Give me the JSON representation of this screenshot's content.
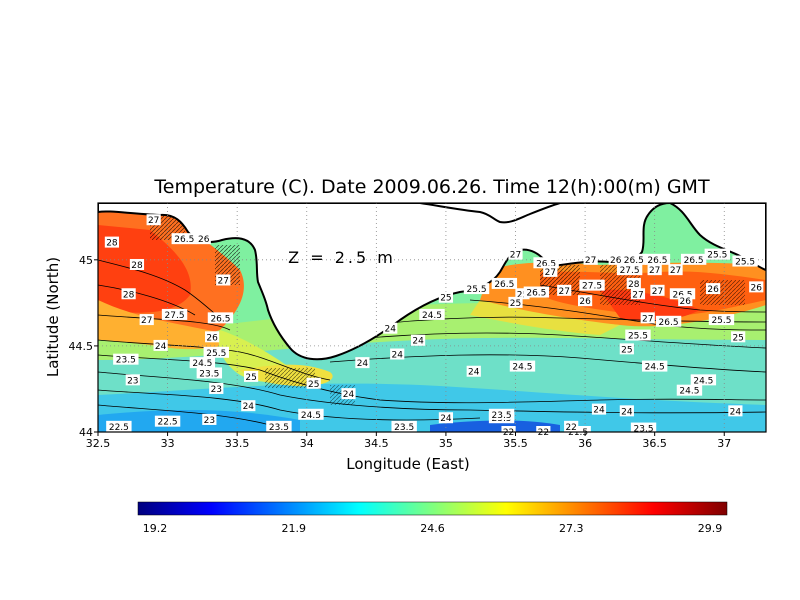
{
  "title": "Temperature (C). Date 2009.06.26. Time 12(h):00(m) GMT",
  "depth_label": "Z = 2.5 m",
  "x_axis": {
    "label": "Longitude (East)",
    "ticks": [
      "32.5",
      "33",
      "33.5",
      "34",
      "34.5",
      "35",
      "35.5",
      "36",
      "36.5",
      "37"
    ],
    "range": [
      32.5,
      37.3
    ]
  },
  "y_axis": {
    "label": "Latitude (North)",
    "ticks": [
      "44",
      "44.5",
      "45"
    ],
    "range": [
      44.0,
      45.33
    ]
  },
  "colorbar": {
    "labels": [
      "19.2",
      "21.9",
      "24.6",
      "27.3",
      "29.9"
    ],
    "colors": [
      "#00007f",
      "#0000ff",
      "#007fff",
      "#00ffff",
      "#7fff7f",
      "#ffff00",
      "#ff7f00",
      "#ff0000",
      "#7f0000"
    ]
  },
  "land_color": "#ffffff",
  "coast_color": "#000000",
  "contour_labels": [
    {
      "text": "28",
      "lon": 32.6,
      "lat": 45.1
    },
    {
      "text": "27",
      "lon": 32.9,
      "lat": 45.23
    },
    {
      "text": "26.5",
      "lon": 33.12,
      "lat": 45.12
    },
    {
      "text": "26",
      "lon": 33.26,
      "lat": 45.12
    },
    {
      "text": "28",
      "lon": 32.78,
      "lat": 44.97
    },
    {
      "text": "28",
      "lon": 32.72,
      "lat": 44.8
    },
    {
      "text": "27",
      "lon": 33.4,
      "lat": 44.88
    },
    {
      "text": "27.5",
      "lon": 33.05,
      "lat": 44.68
    },
    {
      "text": "26.5",
      "lon": 33.38,
      "lat": 44.66
    },
    {
      "text": "27",
      "lon": 32.85,
      "lat": 44.65
    },
    {
      "text": "26",
      "lon": 33.32,
      "lat": 44.55
    },
    {
      "text": "24",
      "lon": 32.95,
      "lat": 44.5
    },
    {
      "text": "25.5",
      "lon": 33.35,
      "lat": 44.46
    },
    {
      "text": "23.5",
      "lon": 32.7,
      "lat": 44.42
    },
    {
      "text": "24.5",
      "lon": 33.25,
      "lat": 44.4
    },
    {
      "text": "23.5",
      "lon": 33.3,
      "lat": 44.34
    },
    {
      "text": "25",
      "lon": 33.6,
      "lat": 44.32
    },
    {
      "text": "23",
      "lon": 32.75,
      "lat": 44.3
    },
    {
      "text": "23",
      "lon": 33.35,
      "lat": 44.25
    },
    {
      "text": "25",
      "lon": 34.05,
      "lat": 44.28
    },
    {
      "text": "24",
      "lon": 33.58,
      "lat": 44.15
    },
    {
      "text": "24.5",
      "lon": 34.03,
      "lat": 44.1
    },
    {
      "text": "22.5",
      "lon": 32.65,
      "lat": 44.03
    },
    {
      "text": "22.5",
      "lon": 33.0,
      "lat": 44.06
    },
    {
      "text": "23",
      "lon": 33.3,
      "lat": 44.07
    },
    {
      "text": "23.5",
      "lon": 33.8,
      "lat": 44.03
    },
    {
      "text": "24",
      "lon": 34.6,
      "lat": 44.6
    },
    {
      "text": "24.5",
      "lon": 34.9,
      "lat": 44.68
    },
    {
      "text": "24",
      "lon": 34.8,
      "lat": 44.53
    },
    {
      "text": "24",
      "lon": 34.65,
      "lat": 44.45
    },
    {
      "text": "24",
      "lon": 34.4,
      "lat": 44.4
    },
    {
      "text": "24",
      "lon": 34.3,
      "lat": 44.22
    },
    {
      "text": "23.5",
      "lon": 34.7,
      "lat": 44.03
    },
    {
      "text": "23",
      "lon": 34.3,
      "lat": 43.99
    },
    {
      "text": "23.5",
      "lon": 34.85,
      "lat": 43.98
    },
    {
      "text": "25",
      "lon": 35.0,
      "lat": 44.78
    },
    {
      "text": "24",
      "lon": 35.2,
      "lat": 44.35
    },
    {
      "text": "24",
      "lon": 35.0,
      "lat": 44.08
    },
    {
      "text": "23.5",
      "lon": 35.4,
      "lat": 44.08
    },
    {
      "text": "22",
      "lon": 35.45,
      "lat": 44.0
    },
    {
      "text": "22",
      "lon": 35.7,
      "lat": 44.0
    },
    {
      "text": "21.5",
      "lon": 35.95,
      "lat": 44.0
    },
    {
      "text": "22",
      "lon": 35.9,
      "lat": 44.03
    },
    {
      "text": "27",
      "lon": 35.5,
      "lat": 45.03
    },
    {
      "text": "26.5",
      "lon": 35.72,
      "lat": 44.98
    },
    {
      "text": "27",
      "lon": 35.75,
      "lat": 44.93
    },
    {
      "text": "27",
      "lon": 36.04,
      "lat": 45.0
    },
    {
      "text": "26.5",
      "lon": 35.42,
      "lat": 44.86
    },
    {
      "text": "25.5",
      "lon": 35.22,
      "lat": 44.83
    },
    {
      "text": "25",
      "lon": 35.55,
      "lat": 44.8
    },
    {
      "text": "26.5",
      "lon": 35.65,
      "lat": 44.81
    },
    {
      "text": "27",
      "lon": 35.85,
      "lat": 44.82
    },
    {
      "text": "26",
      "lon": 36.0,
      "lat": 44.76
    },
    {
      "text": "25",
      "lon": 35.5,
      "lat": 44.75
    },
    {
      "text": "27.5",
      "lon": 36.05,
      "lat": 44.85
    },
    {
      "text": "26",
      "lon": 36.22,
      "lat": 45.0
    },
    {
      "text": "26.5",
      "lon": 36.35,
      "lat": 45.0
    },
    {
      "text": "26.5",
      "lon": 36.52,
      "lat": 45.0
    },
    {
      "text": "26.5",
      "lon": 36.78,
      "lat": 45.0
    },
    {
      "text": "27.5",
      "lon": 36.32,
      "lat": 44.94
    },
    {
      "text": "27",
      "lon": 36.5,
      "lat": 44.94
    },
    {
      "text": "27",
      "lon": 36.65,
      "lat": 44.94
    },
    {
      "text": "28",
      "lon": 36.35,
      "lat": 44.86
    },
    {
      "text": "27",
      "lon": 36.38,
      "lat": 44.8
    },
    {
      "text": "27",
      "lon": 36.52,
      "lat": 44.82
    },
    {
      "text": "25.5",
      "lon": 36.95,
      "lat": 45.03
    },
    {
      "text": "25.5",
      "lon": 37.15,
      "lat": 44.99
    },
    {
      "text": "26",
      "lon": 36.92,
      "lat": 44.83
    },
    {
      "text": "26",
      "lon": 37.23,
      "lat": 44.84
    },
    {
      "text": "26.5",
      "lon": 36.7,
      "lat": 44.8
    },
    {
      "text": "26",
      "lon": 36.72,
      "lat": 44.76
    },
    {
      "text": "27",
      "lon": 36.45,
      "lat": 44.66
    },
    {
      "text": "26.5",
      "lon": 36.6,
      "lat": 44.64
    },
    {
      "text": "25.5",
      "lon": 36.38,
      "lat": 44.56
    },
    {
      "text": "25.5",
      "lon": 36.98,
      "lat": 44.65
    },
    {
      "text": "25",
      "lon": 36.3,
      "lat": 44.48
    },
    {
      "text": "25",
      "lon": 37.1,
      "lat": 44.55
    },
    {
      "text": "24.5",
      "lon": 35.55,
      "lat": 44.38
    },
    {
      "text": "24.5",
      "lon": 36.5,
      "lat": 44.38
    },
    {
      "text": "24.5",
      "lon": 36.85,
      "lat": 44.3
    },
    {
      "text": "24.5",
      "lon": 36.75,
      "lat": 44.24
    },
    {
      "text": "24",
      "lon": 36.1,
      "lat": 44.13
    },
    {
      "text": "24",
      "lon": 36.3,
      "lat": 44.12
    },
    {
      "text": "24",
      "lon": 37.08,
      "lat": 44.12
    },
    {
      "text": "23.5",
      "lon": 35.4,
      "lat": 44.1
    },
    {
      "text": "23.5",
      "lon": 36.42,
      "lat": 44.02
    }
  ]
}
